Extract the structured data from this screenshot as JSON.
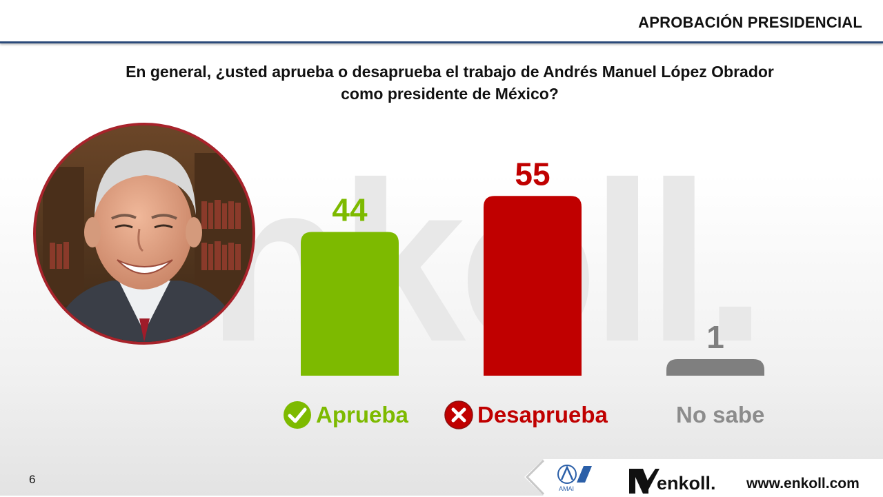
{
  "header": {
    "title": "APROBACIÓN PRESIDENCIAL"
  },
  "question": {
    "line1": "En general, ¿usted aprueba o desaprueba el trabajo de Andrés Manuel López Obrador",
    "line2": "como presidente de México?"
  },
  "watermark": "nkoll.",
  "chart_data": {
    "type": "bar",
    "categories": [
      "Aprueba",
      "Desaprueba",
      "No sabe"
    ],
    "values": [
      44,
      55,
      1
    ],
    "colors": [
      "#7dba00",
      "#c00000",
      "#7f7f7f"
    ],
    "ylim": [
      0,
      60
    ],
    "data_labels": [
      "44",
      "55",
      "1"
    ],
    "xlabel": "",
    "ylabel": ""
  },
  "legend": [
    {
      "label": "Aprueba",
      "icon": "check-circle-icon",
      "color": "#7dba00"
    },
    {
      "label": "Desaprueba",
      "icon": "x-circle-icon",
      "color": "#c00000"
    },
    {
      "label": "No sabe",
      "icon": "",
      "color": "#8c8c8c"
    }
  ],
  "footer": {
    "page_number": "6",
    "amai_label": "AMAI",
    "brand": "enkoll.",
    "website": "www.enkoll.com"
  },
  "colors": {
    "header_rule": "#2b4a7a",
    "photo_border": "#a8232b"
  }
}
